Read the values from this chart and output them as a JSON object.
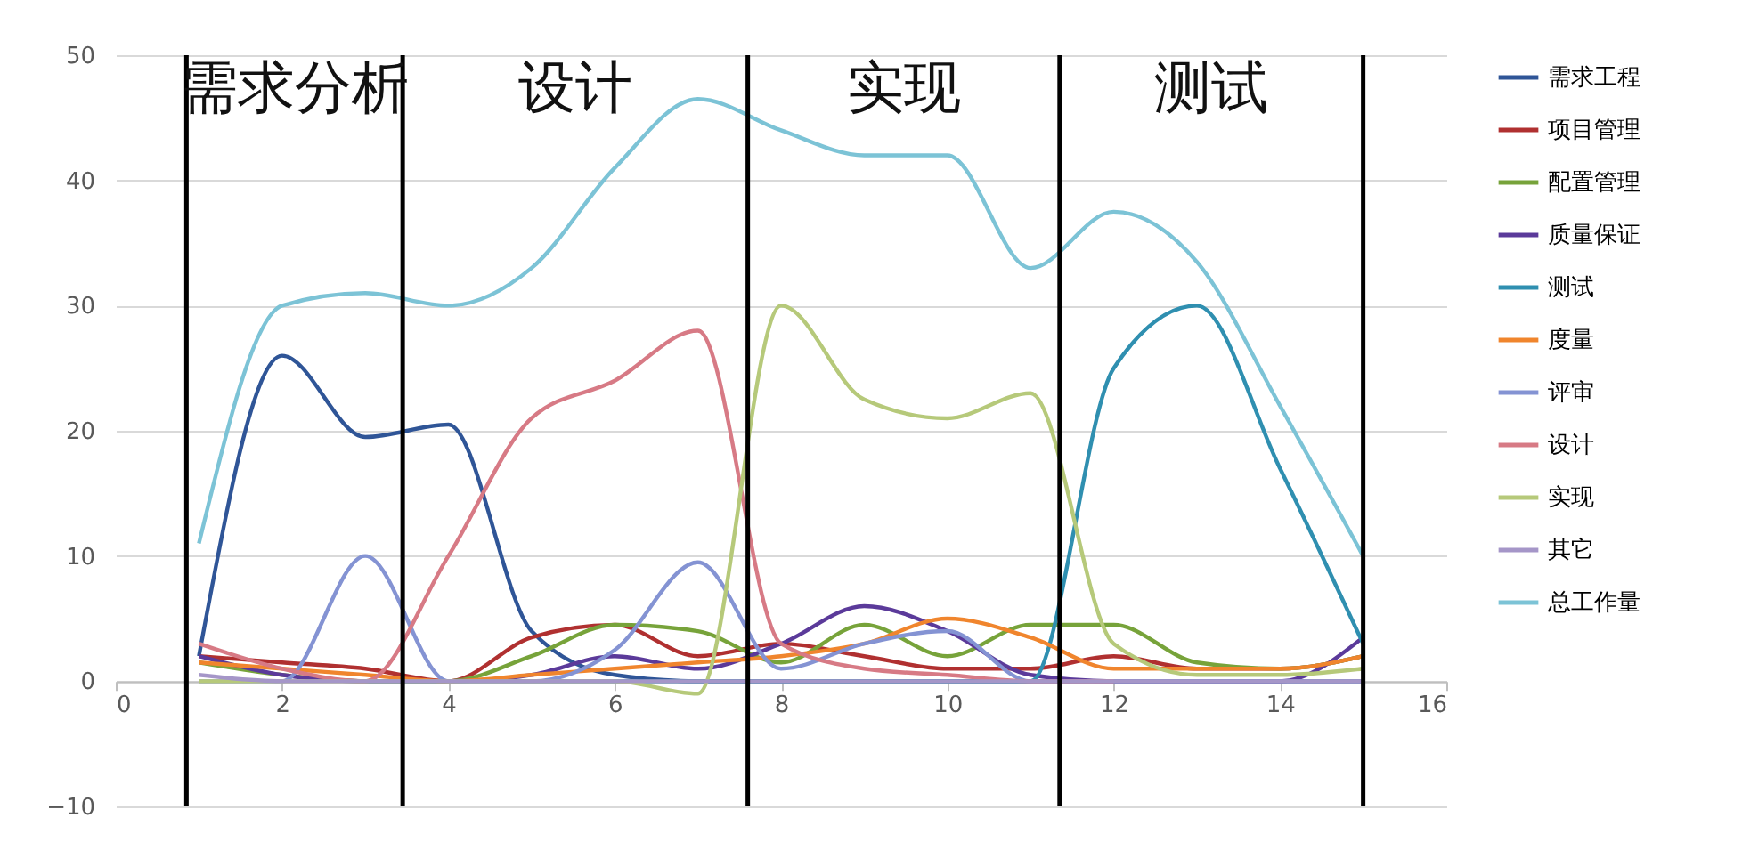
{
  "chart_data": {
    "type": "line",
    "x": [
      1,
      2,
      3,
      4,
      5,
      6,
      7,
      8,
      9,
      10,
      11,
      12,
      13,
      14,
      15
    ],
    "series": [
      {
        "name": "需求工程",
        "color": "#2f5597",
        "values": [
          2,
          26,
          19.5,
          20.5,
          4,
          0.5,
          0,
          0,
          0,
          0,
          0,
          0,
          0,
          0,
          0
        ]
      },
      {
        "name": "项目管理",
        "color": "#b03030",
        "values": [
          2,
          1.5,
          1,
          0,
          3.5,
          4.5,
          2,
          3,
          2,
          1,
          1,
          2,
          1,
          1,
          2
        ]
      },
      {
        "name": "配置管理",
        "color": "#77a33a",
        "values": [
          1.5,
          0.5,
          0,
          0,
          2,
          4.5,
          4,
          1.5,
          4.5,
          2,
          4.5,
          4.5,
          1.5,
          1,
          2
        ]
      },
      {
        "name": "质量保证",
        "color": "#5b3a9a",
        "values": [
          2,
          0.5,
          0,
          0,
          0.5,
          2,
          1,
          3,
          6,
          4,
          0.5,
          0,
          0,
          0,
          3.5
        ]
      },
      {
        "name": "测试",
        "color": "#2f8fb0",
        "values": [
          null,
          null,
          0,
          0,
          0,
          0,
          0,
          0,
          0,
          0,
          0,
          25,
          30,
          17,
          3
        ]
      },
      {
        "name": "度量",
        "color": "#f0852d",
        "values": [
          1.5,
          1,
          0.5,
          0,
          0.5,
          1,
          1.5,
          2,
          3,
          5,
          3.5,
          1,
          1,
          1,
          2
        ]
      },
      {
        "name": "评审",
        "color": "#8493d3",
        "values": [
          0,
          0,
          10,
          0,
          0,
          2.5,
          9.5,
          1,
          3,
          4,
          0,
          0,
          0,
          0,
          0
        ]
      },
      {
        "name": "设计",
        "color": "#d77a85",
        "values": [
          3,
          1,
          0,
          10,
          21,
          24,
          28,
          3,
          1,
          0.5,
          0,
          0,
          null,
          null,
          null
        ]
      },
      {
        "name": "实现",
        "color": "#b6c97a",
        "values": [
          0,
          0,
          0,
          0,
          0,
          0,
          -1,
          30,
          22.5,
          21,
          23,
          3,
          0.5,
          0.5,
          1
        ]
      },
      {
        "name": "其它",
        "color": "#a596c8",
        "values": [
          0.5,
          0,
          0,
          0,
          0,
          0,
          0,
          0,
          0,
          0,
          0,
          0,
          0,
          0,
          0
        ]
      },
      {
        "name": "总工作量",
        "color": "#7cc3d6",
        "values": [
          11,
          30,
          31,
          30,
          33,
          41,
          46.5,
          44,
          42,
          42,
          33,
          37.5,
          33.5,
          22,
          10
        ]
      }
    ],
    "xlim": [
      0,
      16
    ],
    "xticks": [
      0,
      2,
      4,
      6,
      8,
      10,
      12,
      14,
      16
    ],
    "ylim": [
      -10,
      50
    ],
    "yticks": [
      -10,
      0,
      10,
      20,
      30,
      40,
      50
    ],
    "grid": "y",
    "legend": "right",
    "ref_lines": [
      {
        "axis": "x",
        "value": 0.85,
        "color": "#000000"
      },
      {
        "axis": "x",
        "value": 3.45,
        "color": "#000000"
      },
      {
        "axis": "x",
        "value": 7.6,
        "color": "#000000"
      },
      {
        "axis": "x",
        "value": 11.35,
        "color": "#000000"
      },
      {
        "axis": "x",
        "value": 15,
        "color": "#000000"
      }
    ],
    "annotations": [
      "需求分析",
      "设计",
      "实现",
      "测试"
    ]
  }
}
